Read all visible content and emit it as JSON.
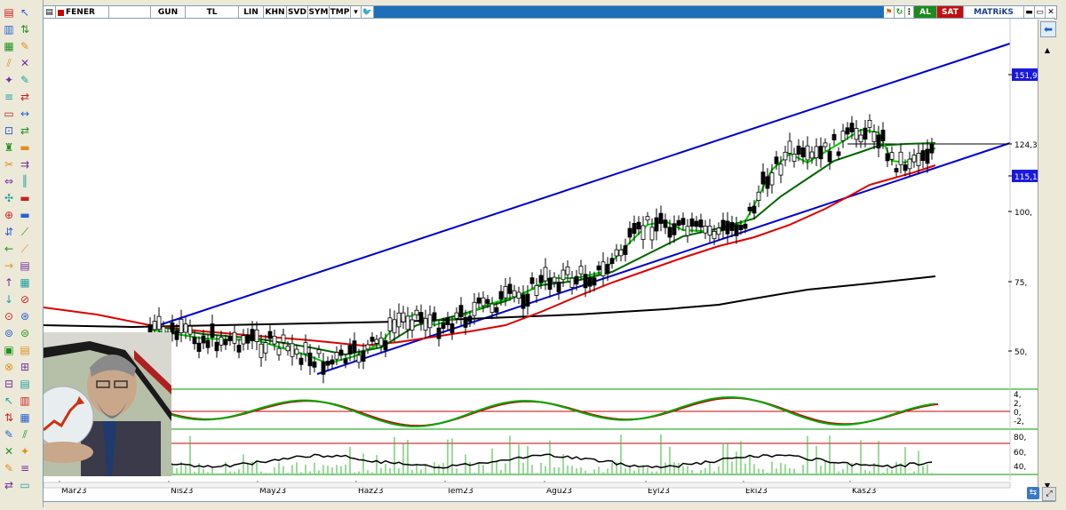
{
  "toolbar": {
    "symbol": "FENER",
    "period": "GUN",
    "currency": "TL",
    "scale_lin": "LIN",
    "khn": "KHN",
    "svd": "SVD",
    "sym": "SYM",
    "tmp": "TMP",
    "buy_label": "AL",
    "sell_label": "SAT",
    "brand": "MATRiKS"
  },
  "price_axis": {
    "labels": [
      "151,95",
      "124,3",
      "115,1",
      "100,",
      "75,",
      "50,"
    ]
  },
  "indicator_axis_1": {
    "labels": [
      "4,",
      "2,",
      "0,",
      "-2,"
    ]
  },
  "indicator_axis_2": {
    "labels": [
      "80,",
      "60,",
      "40,"
    ]
  },
  "time_axis": {
    "labels": [
      "Mar23",
      "Nis23",
      "May23",
      "Haz23",
      "Tem23",
      "Ağu23",
      "Eyl23",
      "Eki23",
      "Kas23"
    ]
  },
  "colors": {
    "channel": "#0000cc",
    "ma_fast": "#00cc00",
    "ma_mid": "#006400",
    "ma_red": "#dd0000",
    "ma_long": "#000000",
    "price_tag": "#1a1adc"
  },
  "chart_data": {
    "type": "candlestick",
    "series": [
      {
        "name": "",
        "x": [
          "Mar23",
          "Nis23",
          "May23",
          "Haz23",
          "Tem23",
          "Ağu23",
          "Eyl23",
          "Eki23",
          "Kas23"
        ],
        "values": [
          55,
          52,
          47,
          62,
          68,
          78,
          95,
          125,
          122
        ]
      }
    ],
    "ylim": [
      40,
      160
    ],
    "highlighted": [
      151.95,
      124.3,
      115.1
    ]
  }
}
